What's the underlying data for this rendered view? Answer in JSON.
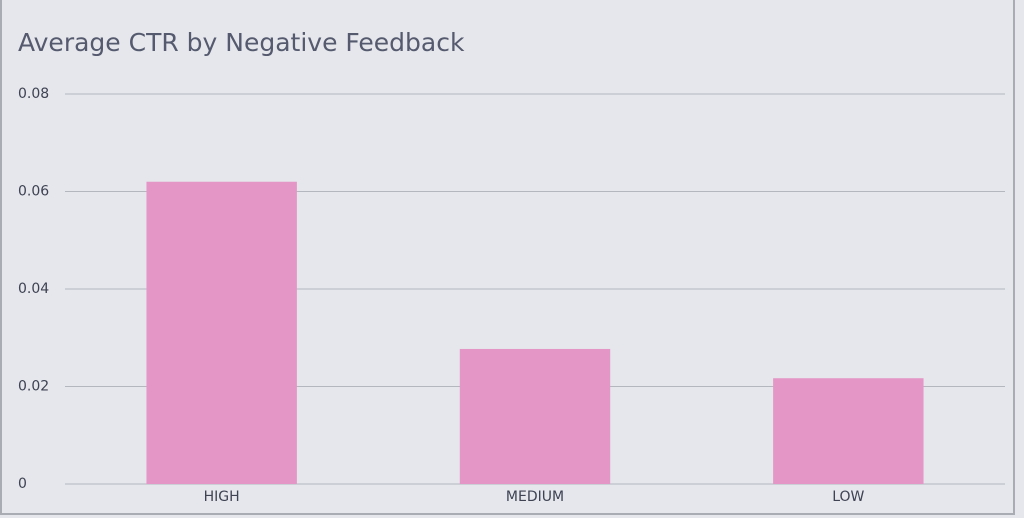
{
  "chart_data": {
    "type": "bar",
    "title": "Average CTR by Negative Feedback",
    "categories": [
      "HIGH",
      "MEDIUM",
      "LOW"
    ],
    "values": [
      0.062,
      0.0277,
      0.0217
    ],
    "color": "#e496c6",
    "ylim": [
      0,
      0.08
    ],
    "yticks": [
      0,
      0.02,
      0.04,
      0.06,
      0.08
    ],
    "grid": true
  }
}
